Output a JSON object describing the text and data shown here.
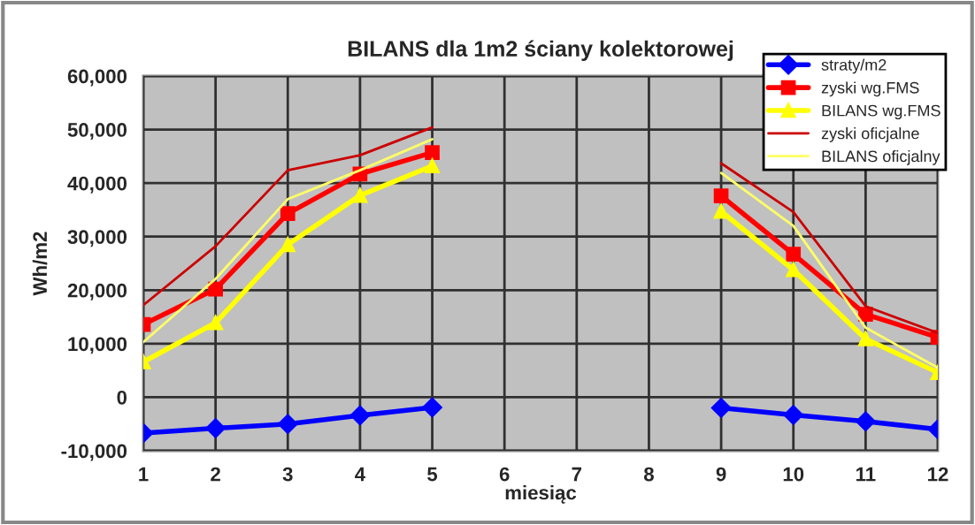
{
  "chart_data": {
    "type": "line",
    "title": "BILANS dla 1m2 ściany kolektorowej",
    "xlabel": "miesiąc",
    "ylabel": "Wh/m2",
    "categories": [
      "1",
      "2",
      "3",
      "4",
      "5",
      "6",
      "7",
      "8",
      "9",
      "10",
      "11",
      "12"
    ],
    "series": [
      {
        "name": "straty/m2",
        "color": "#0000ff",
        "marker": "diamond",
        "values": [
          -6700,
          -5800,
          -5000,
          -3400,
          -1900,
          null,
          null,
          null,
          -2000,
          -3300,
          -4500,
          -6000
        ]
      },
      {
        "name": "zyski wg.FMS",
        "color": "#ff0000",
        "marker": "square",
        "values": [
          13600,
          20200,
          34300,
          41700,
          45700,
          null,
          null,
          null,
          37600,
          26700,
          15500,
          11200
        ]
      },
      {
        "name": "BILANS wg.FMS",
        "color": "#ffff00",
        "marker": "triangle",
        "values": [
          6600,
          13900,
          28500,
          37700,
          43200,
          null,
          null,
          null,
          34700,
          23800,
          10900,
          4600
        ]
      },
      {
        "name": "zyski oficjalne",
        "color": "#cc0000",
        "marker": "none",
        "values": [
          17200,
          28200,
          42400,
          45200,
          50400,
          null,
          null,
          null,
          43700,
          34600,
          17000,
          12000
        ]
      },
      {
        "name": "BILANS oficjalny",
        "color": "#ffff66",
        "marker": "none",
        "values": [
          10300,
          22100,
          37000,
          42400,
          48200,
          null,
          null,
          null,
          41900,
          32000,
          13000,
          5500
        ]
      }
    ],
    "ylim": [
      -10000,
      60000
    ],
    "yticks": [
      {
        "value": -10000,
        "label": "-10,000"
      },
      0,
      {
        "value": 10000,
        "label": "10,000"
      },
      {
        "value": 20000,
        "label": "20,000"
      },
      {
        "value": 30000,
        "label": "30,000"
      },
      {
        "value": 40000,
        "label": "40,000"
      },
      {
        "value": 50000,
        "label": "50,000"
      },
      {
        "value": 60000,
        "label": "60,000"
      }
    ],
    "grid": true,
    "legend": "top right"
  }
}
